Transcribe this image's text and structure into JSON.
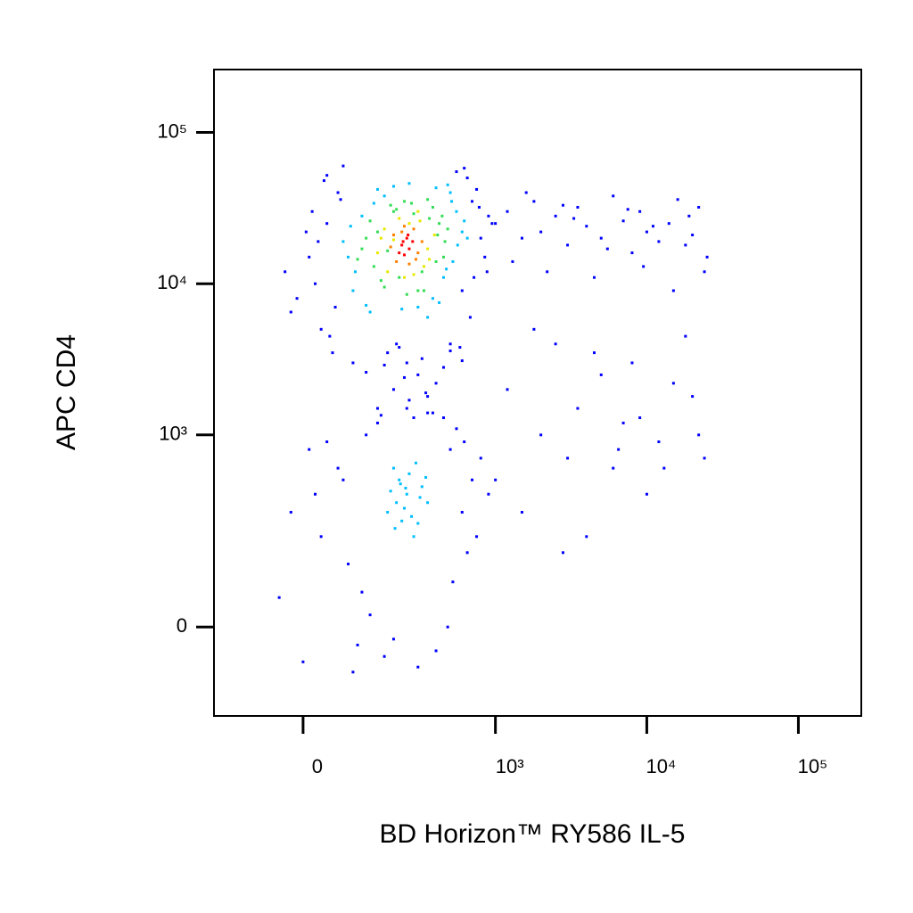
{
  "chart_data": {
    "type": "scatter",
    "x_label": "BD Horizon™ RY586 IL-5",
    "y_label": "APC CD4",
    "xscale": "biexponential",
    "yscale": "biexponential",
    "grid": false,
    "xlim": [
      -195,
      260000
    ],
    "ylim": [
      -195,
      260000
    ],
    "xticks": [
      0,
      {
        "value": 1000,
        "label": "10³"
      },
      {
        "value": 10000,
        "label": "10⁴"
      },
      {
        "value": 100000,
        "label": "10⁵"
      }
    ],
    "yticks": [
      0,
      {
        "value": 1000,
        "label": "10³"
      },
      {
        "value": 10000,
        "label": "10⁴"
      },
      {
        "value": 100000,
        "label": "10⁵"
      }
    ],
    "series": [
      {
        "color": "#0000ff",
        "x": [
          20,
          40,
          -10,
          60,
          700,
          800,
          650,
          30,
          10,
          900,
          50,
          750,
          -30,
          550,
          600,
          70,
          850,
          45,
          15,
          680,
          25,
          580,
          35,
          720,
          55,
          620,
          5,
          780,
          65,
          -20,
          500,
          950,
          40,
          880,
          90,
          1000,
          1200,
          1500,
          1800,
          2000,
          2500,
          3000,
          3500,
          4000,
          5000,
          6000,
          7000,
          8000,
          9000,
          10000,
          12000,
          14000,
          16000,
          18000,
          20000,
          22000,
          25000,
          1300,
          1600,
          2200,
          2800,
          3300,
          4500,
          5500,
          7500,
          9500,
          11000,
          15000,
          19000,
          24000,
          150,
          200,
          300,
          250,
          350,
          180,
          400,
          280,
          220,
          450,
          120,
          320,
          260,
          380,
          170,
          500,
          240,
          340,
          210,
          600,
          -40,
          0,
          30,
          60,
          100,
          120,
          80,
          150,
          500,
          600,
          700,
          550,
          650,
          800,
          40,
          20,
          90,
          130,
          170,
          400,
          450,
          520,
          300,
          250,
          200,
          -20,
          10,
          70,
          350,
          620,
          750,
          110,
          160,
          480,
          900,
          1000,
          1200,
          1500,
          2000,
          2500,
          3000,
          3500,
          4000,
          5000,
          6000,
          7000,
          8000,
          10000,
          12000,
          15000,
          20000,
          24000,
          1800,
          2800,
          4500,
          6500,
          9000,
          13000,
          18000,
          22000
        ],
        "values": [
          10000,
          25000,
          8000,
          40000,
          35000,
          20000,
          50000,
          5000,
          15000,
          28000,
          3500,
          42000,
          12000,
          55000,
          9000,
          60000,
          15000,
          4500,
          30000,
          6000,
          19000,
          3800,
          48000,
          11000,
          7000,
          58000,
          22000,
          32000,
          36000,
          6500,
          4000,
          25000,
          52000,
          12000,
          3000,
          25000,
          30000,
          20000,
          35000,
          22000,
          28000,
          18000,
          32000,
          24000,
          20000,
          38000,
          26000,
          16000,
          30000,
          22000,
          19000,
          25000,
          36000,
          18000,
          21000,
          32000,
          15000,
          14000,
          40000,
          12000,
          33000,
          27000,
          11000,
          17000,
          31000,
          13000,
          24000,
          9000,
          28000,
          12000,
          1500,
          2000,
          2500,
          3000,
          1800,
          3500,
          2200,
          1300,
          3800,
          2800,
          2600,
          3200,
          1700,
          1400,
          2900,
          3600,
          2400,
          1900,
          4000,
          3100,
          50,
          -60,
          200,
          600,
          -30,
          1000,
          120,
          1200,
          800,
          300,
          500,
          1100,
          150,
          700,
          900,
          400,
          -80,
          20,
          -50,
          -40,
          1300,
          80,
          -70,
          1500,
          -20,
          300,
          800,
          500,
          1400,
          900,
          200,
          60,
          1350,
          0,
          400,
          500,
          2000,
          300,
          1000,
          4000,
          700,
          1500,
          200,
          2500,
          600,
          1200,
          3000,
          400,
          900,
          2200,
          1800,
          700,
          5000,
          150,
          3500,
          800,
          1300,
          600,
          4500,
          1000
        ]
      },
      {
        "color": "#00bfff",
        "x": [
          80,
          550,
          500,
          90,
          600,
          70,
          450,
          150,
          520,
          110,
          480,
          130,
          300,
          200,
          560,
          95,
          420,
          260,
          350,
          170,
          620,
          85,
          400,
          230,
          510,
          140,
          380,
          650,
          120,
          470,
          180,
          250,
          300,
          220,
          350,
          200,
          280,
          240,
          320,
          190,
          260,
          230,
          310,
          210,
          270,
          340,
          245,
          290,
          205,
          225
        ],
        "values": [
          15000,
          30000,
          40000,
          9000,
          22000,
          19000,
          11000,
          42000,
          14000,
          28000,
          45000,
          6500,
          7000,
          44000,
          18000,
          12000,
          7500,
          46000,
          6000,
          38000,
          26000,
          24000,
          43000,
          6800,
          35000,
          34000,
          8000,
          20000,
          7200,
          12500,
          300,
          400,
          250,
          500,
          350,
          600,
          200,
          320,
          450,
          420,
          550,
          260,
          380,
          350,
          280,
          520,
          440,
          650,
          230,
          470
        ]
      },
      {
        "color": "#33dd55",
        "x": [
          120,
          420,
          380,
          140,
          460,
          110,
          300,
          200,
          480,
          160,
          350,
          250,
          130,
          400,
          190,
          440,
          220,
          320,
          150,
          270,
          170,
          360,
          450,
          100,
          210,
          330,
          280,
          180,
          410,
          240
        ],
        "values": [
          20000,
          25000,
          32000,
          13000,
          19000,
          17000,
          9000,
          30000,
          23000,
          10500,
          36000,
          8500,
          26000,
          14000,
          33000,
          28000,
          11000,
          12000,
          22000,
          34000,
          9500,
          27000,
          15000,
          14500,
          31000,
          9000,
          29000,
          16500,
          21000,
          35000
        ]
      },
      {
        "color": "#e8e800",
        "x": [
          170,
          350,
          310,
          180,
          390,
          150,
          280,
          220,
          330,
          200,
          260,
          360,
          160,
          300,
          240
        ],
        "values": [
          23000,
          17000,
          26000,
          12000,
          21000,
          16000,
          11500,
          27000,
          13000,
          19500,
          25000,
          14500,
          20000,
          30000,
          11000
        ]
      },
      {
        "color": "#ff8000",
        "x": [
          200,
          300,
          280,
          210,
          320,
          260,
          190,
          240,
          290,
          230
        ],
        "values": [
          21000,
          16000,
          23000,
          14000,
          19000,
          13500,
          17500,
          24000,
          14500,
          22000
        ]
      },
      {
        "color": "#ff0000",
        "x": [
          230,
          260,
          250,
          220,
          275,
          240,
          255,
          235
        ],
        "values": [
          18000,
          17000,
          20000,
          16000,
          19000,
          15500,
          21000,
          19000
        ]
      }
    ]
  }
}
